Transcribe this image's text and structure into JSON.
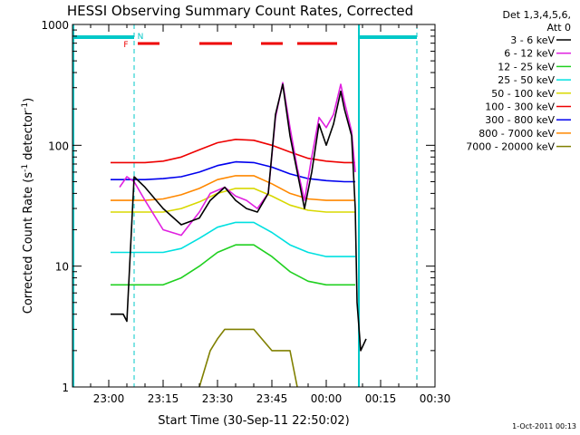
{
  "chart_data": {
    "type": "line",
    "title": "HESSI Observing Summary Count Rates, Corrected",
    "xlabel": "Start Time (30-Sep-11 22:50:02)",
    "ylabel_main": "Corrected Count Rate (s",
    "ylabel_sup1": "-1",
    "ylabel_mid": " detector",
    "ylabel_sup2": "-1",
    "ylabel_end": ")",
    "yscale": "log",
    "ylim": [
      1,
      1000
    ],
    "x_start": "22:50",
    "x_end": "00:30",
    "x_ticks": [
      {
        "time": "23:00",
        "minute": 10
      },
      {
        "time": "23:15",
        "minute": 25
      },
      {
        "time": "23:30",
        "minute": 40
      },
      {
        "time": "23:45",
        "minute": 55
      },
      {
        "time": "00:00",
        "minute": 70
      },
      {
        "time": "00:15",
        "minute": 85
      },
      {
        "time": "00:30",
        "minute": 100
      }
    ],
    "y_ticks": [
      {
        "label": "1",
        "value": 1
      },
      {
        "label": "10",
        "value": 10
      },
      {
        "label": "100",
        "value": 100
      },
      {
        "label": "1000",
        "value": 1000
      }
    ],
    "legend": {
      "placement": "top-right",
      "header": [
        "Det 1,3,4,5,6,",
        "Att 0"
      ]
    },
    "series": [
      {
        "name": "3 - 6 keV",
        "color": "#000000",
        "x": [
          "23:00:30",
          "23:03",
          "23:04",
          "23:05",
          "23:07",
          "23:10",
          "23:15",
          "23:20",
          "23:25",
          "23:28",
          "23:32",
          "23:35",
          "23:38",
          "23:41",
          "23:44",
          "23:46",
          "23:48",
          "23:50",
          "23:52",
          "23:54",
          "23:56",
          "23:58",
          "00:00",
          "00:02",
          "00:04",
          "00:05",
          "00:07",
          "00:08",
          "00:08:30",
          "00:09:30",
          "00:11"
        ],
        "y": [
          4,
          4,
          4,
          3.5,
          55,
          45,
          30,
          22,
          25,
          35,
          45,
          35,
          30,
          28,
          40,
          180,
          320,
          120,
          60,
          30,
          60,
          150,
          100,
          150,
          280,
          200,
          120,
          30,
          5,
          2,
          2.5
        ]
      },
      {
        "name": "6 - 12 keV",
        "color": "#e020e0",
        "x": [
          "23:03",
          "23:05",
          "23:07",
          "23:10",
          "23:15",
          "23:20",
          "23:25",
          "23:28",
          "23:32",
          "23:35",
          "23:38",
          "23:41",
          "23:44",
          "23:46",
          "23:48",
          "23:50",
          "23:52",
          "23:54",
          "23:56",
          "23:58",
          "00:00",
          "00:02",
          "00:04",
          "00:05",
          "00:07",
          "00:08"
        ],
        "y": [
          45,
          55,
          50,
          35,
          20,
          18,
          28,
          40,
          45,
          38,
          35,
          30,
          40,
          170,
          330,
          140,
          65,
          35,
          80,
          170,
          140,
          180,
          320,
          230,
          130,
          60
        ]
      },
      {
        "name": "12 - 25 keV",
        "color": "#20d020",
        "x": [
          "23:00:30",
          "23:05",
          "23:10",
          "23:15",
          "23:20",
          "23:25",
          "23:30",
          "23:35",
          "23:40",
          "23:45",
          "23:50",
          "23:55",
          "00:00",
          "00:05",
          "00:08"
        ],
        "y": [
          7,
          7,
          7,
          7,
          8,
          10,
          13,
          15,
          15,
          12,
          9,
          7.5,
          7,
          7,
          7
        ]
      },
      {
        "name": "25 - 50 keV",
        "color": "#00e0e0",
        "x": [
          "23:00:30",
          "23:05",
          "23:10",
          "23:15",
          "23:20",
          "23:25",
          "23:30",
          "23:35",
          "23:40",
          "23:45",
          "23:50",
          "23:55",
          "00:00",
          "00:05",
          "00:08"
        ],
        "y": [
          13,
          13,
          13,
          13,
          14,
          17,
          21,
          23,
          23,
          19,
          15,
          13,
          12,
          12,
          12
        ]
      },
      {
        "name": "50 - 100 keV",
        "color": "#d8d800",
        "x": [
          "23:00:30",
          "23:05",
          "23:10",
          "23:15",
          "23:20",
          "23:25",
          "23:30",
          "23:35",
          "23:40",
          "23:45",
          "23:50",
          "23:55",
          "00:00",
          "00:05",
          "00:08"
        ],
        "y": [
          28,
          28,
          28,
          28,
          30,
          34,
          40,
          44,
          44,
          38,
          32,
          29,
          28,
          28,
          28
        ]
      },
      {
        "name": "100 - 300 keV",
        "color": "#ee0000",
        "x": [
          "23:00:30",
          "23:05",
          "23:10",
          "23:15",
          "23:20",
          "23:25",
          "23:30",
          "23:35",
          "23:40",
          "23:45",
          "23:50",
          "23:55",
          "00:00",
          "00:05",
          "00:08"
        ],
        "y": [
          72,
          72,
          72,
          74,
          80,
          92,
          105,
          112,
          110,
          100,
          88,
          78,
          74,
          72,
          72
        ]
      },
      {
        "name": "300 - 800 keV",
        "color": "#0000ee",
        "x": [
          "23:00:30",
          "23:05",
          "23:10",
          "23:15",
          "23:20",
          "23:25",
          "23:30",
          "23:35",
          "23:40",
          "23:45",
          "23:50",
          "23:55",
          "00:00",
          "00:05",
          "00:08"
        ],
        "y": [
          52,
          52,
          52,
          53,
          55,
          60,
          68,
          73,
          72,
          66,
          58,
          53,
          51,
          50,
          50
        ]
      },
      {
        "name": "800 - 7000 keV",
        "color": "#ff8800",
        "x": [
          "23:00:30",
          "23:05",
          "23:10",
          "23:15",
          "23:20",
          "23:25",
          "23:30",
          "23:35",
          "23:40",
          "23:45",
          "23:50",
          "23:55",
          "00:00",
          "00:05",
          "00:08"
        ],
        "y": [
          35,
          35,
          35,
          36,
          39,
          44,
          52,
          56,
          56,
          48,
          40,
          36,
          35,
          35,
          35
        ]
      },
      {
        "name": "7000 - 20000 keV",
        "color": "#808000",
        "x": [
          "23:25",
          "23:28",
          "23:30",
          "23:32",
          "23:35",
          "23:40",
          "23:45",
          "23:50",
          "23:52"
        ],
        "y": [
          1,
          2,
          2.5,
          3,
          3,
          3,
          2,
          2,
          1
        ]
      }
    ],
    "annotations": [
      {
        "label": "F",
        "color": "#ee0000",
        "time": "23:06"
      },
      {
        "label": "N",
        "color": "#00c8c8",
        "time": "23:07"
      }
    ],
    "night_bars": [
      {
        "from": "22:50",
        "to": "23:07"
      },
      {
        "from": "00:09",
        "to": "00:25"
      }
    ],
    "flare_bars": [
      {
        "from": "23:08",
        "to": "23:14"
      },
      {
        "from": "23:25",
        "to": "23:34"
      },
      {
        "from": "23:42",
        "to": "23:48"
      },
      {
        "from": "23:52",
        "to": "00:03"
      }
    ],
    "night_lines": [
      "23:07",
      "00:09",
      "00:25"
    ],
    "footer_date": "1-Oct-2011 00:13"
  }
}
